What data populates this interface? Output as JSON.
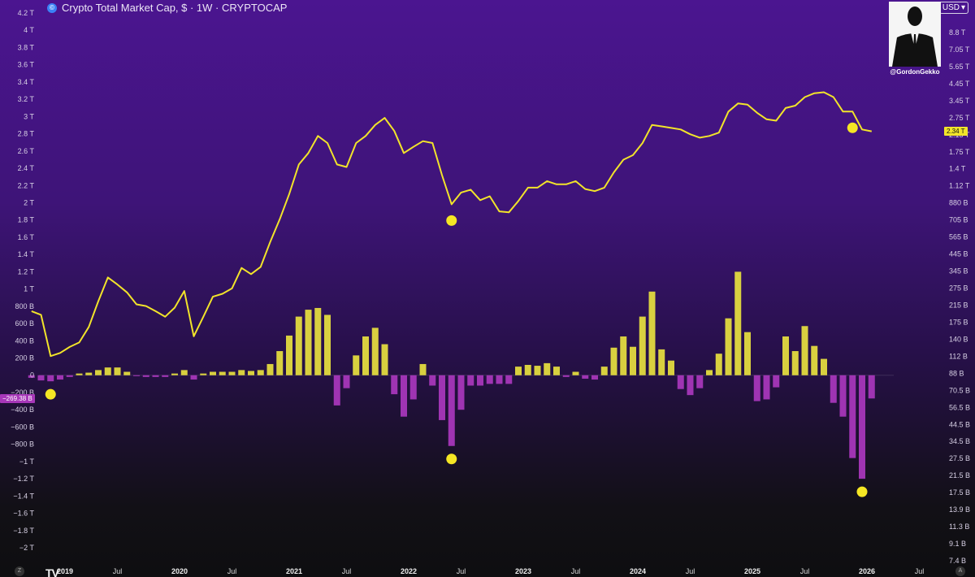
{
  "header": {
    "title": "Crypto Total Market Cap, $ · 1W · CRYPTOCAP",
    "icon": "crypto-cap-icon"
  },
  "currency_button": {
    "label": "USD",
    "icon": "chevron-down-icon"
  },
  "watermark": {
    "handle": "@GordonGekko",
    "icon": "suited-man-silhouette-icon"
  },
  "price_tag": {
    "label": "2.34 T",
    "color": "#f2e42a"
  },
  "oscillator_tag": {
    "label": "−269.38 B",
    "color": "#a737b9"
  },
  "controls": {
    "left": "Z",
    "right": "A",
    "logo": "TV"
  },
  "colors": {
    "line": "#f2e42a",
    "positive": "#e3db3f",
    "negative": "#a737b9",
    "marker": "#f5e624"
  },
  "chart_data": [
    {
      "type": "line",
      "title": "Crypto Total Market Cap, $ · 1W · CRYPTOCAP",
      "y_scale": "log",
      "y_unit": "USD",
      "x": [
        "2018-10",
        "2018-11",
        "2018-12",
        "2019-01",
        "2019-02",
        "2019-03",
        "2019-04",
        "2019-05",
        "2019-06",
        "2019-07",
        "2019-08",
        "2019-09",
        "2019-10",
        "2019-11",
        "2019-12",
        "2020-01",
        "2020-02",
        "2020-03",
        "2020-04",
        "2020-05",
        "2020-06",
        "2020-07",
        "2020-08",
        "2020-09",
        "2020-10",
        "2020-11",
        "2020-12",
        "2021-01",
        "2021-02",
        "2021-03",
        "2021-04",
        "2021-05",
        "2021-06",
        "2021-07",
        "2021-08",
        "2021-09",
        "2021-10",
        "2021-11",
        "2021-12",
        "2022-01",
        "2022-02",
        "2022-03",
        "2022-04",
        "2022-05",
        "2022-06",
        "2022-07",
        "2022-08",
        "2022-09",
        "2022-10",
        "2022-11",
        "2022-12",
        "2023-01",
        "2023-02",
        "2023-03",
        "2023-04",
        "2023-05",
        "2023-06",
        "2023-07",
        "2023-08",
        "2023-09",
        "2023-10",
        "2023-11",
        "2023-12",
        "2024-01",
        "2024-02",
        "2024-03",
        "2024-04",
        "2024-05",
        "2024-06",
        "2024-07",
        "2024-08",
        "2024-09",
        "2024-10",
        "2024-11",
        "2024-12",
        "2025-01",
        "2025-02",
        "2025-03",
        "2025-04",
        "2025-05",
        "2025-06",
        "2025-07",
        "2025-08",
        "2025-09",
        "2025-10",
        "2025-11",
        "2025-12",
        "2026-01",
        "2026-02"
      ],
      "y": [
        210000000000.0,
        200000000000.0,
        115000000000.0,
        120000000000.0,
        130000000000.0,
        138000000000.0,
        170000000000.0,
        240000000000.0,
        330000000000.0,
        300000000000.0,
        270000000000.0,
        230000000000.0,
        225000000000.0,
        210000000000.0,
        195000000000.0,
        220000000000.0,
        275000000000.0,
        150000000000.0,
        195000000000.0,
        255000000000.0,
        265000000000.0,
        285000000000.0,
        375000000000.0,
        345000000000.0,
        380000000000.0,
        530000000000.0,
        720000000000.0,
        1010000000000.0,
        1500000000000.0,
        1750000000000.0,
        2200000000000.0,
        2000000000000.0,
        1500000000000.0,
        1450000000000.0,
        2000000000000.0,
        2200000000000.0,
        2550000000000.0,
        2800000000000.0,
        2350000000000.0,
        1750000000000.0,
        1900000000000.0,
        2050000000000.0,
        2000000000000.0,
        1300000000000.0,
        880000000000.0,
        1030000000000.0,
        1070000000000.0,
        930000000000.0,
        980000000000.0,
        800000000000.0,
        790000000000.0,
        920000000000.0,
        1100000000000.0,
        1100000000000.0,
        1200000000000.0,
        1150000000000.0,
        1150000000000.0,
        1200000000000.0,
        1080000000000.0,
        1050000000000.0,
        1100000000000.0,
        1350000000000.0,
        1600000000000.0,
        1700000000000.0,
        2000000000000.0,
        2550000000000.0,
        2500000000000.0,
        2450000000000.0,
        2400000000000.0,
        2250000000000.0,
        2150000000000.0,
        2200000000000.0,
        2300000000000.0,
        3050000000000.0,
        3400000000000.0,
        3350000000000.0,
        3000000000000.0,
        2750000000000.0,
        2700000000000.0,
        3200000000000.0,
        3300000000000.0,
        3700000000000.0,
        3900000000000.0,
        3950000000000.0,
        3700000000000.0,
        3050000000000.0,
        3050000000000.0,
        2400000000000.0,
        2340000000000.0
      ],
      "right_axis_ticks": [
        "8.8 T",
        "7.05 T",
        "5.65 T",
        "4.45 T",
        "3.45 T",
        "2.75 T",
        "2.15 T",
        "1.75 T",
        "1.4 T",
        "1.12 T",
        "880 B",
        "705 B",
        "565 B",
        "445 B",
        "345 B",
        "275 B",
        "215 B",
        "175 B",
        "140 B",
        "112 B",
        "88 B",
        "70.5 B",
        "56.5 B",
        "44.5 B",
        "34.5 B",
        "27.5 B",
        "21.5 B",
        "17.5 B",
        "13.9 B",
        "11.3 B",
        "9.1 B",
        "7.4 B"
      ],
      "last_value_label": "2.34 T"
    },
    {
      "type": "bar",
      "y_unit": "USD",
      "ylim": [
        -2000000000000.0,
        4200000000000.0
      ],
      "left_axis_ticks": [
        "4.2 T",
        "4 T",
        "3.8 T",
        "3.6 T",
        "3.4 T",
        "3.2 T",
        "3 T",
        "2.8 T",
        "2.6 T",
        "2.4 T",
        "2.2 T",
        "2 T",
        "1.8 T",
        "1.6 T",
        "1.4 T",
        "1.2 T",
        "1 T",
        "800 B",
        "600 B",
        "400 B",
        "200 B",
        "0",
        "−200 B",
        "−400 B",
        "−600 B",
        "−800 B",
        "−1 T",
        "−1.2 T",
        "−1.4 T",
        "−1.6 T",
        "−1.8 T",
        "−2 T"
      ],
      "x": [
        "2018-10",
        "2018-11",
        "2018-12",
        "2019-01",
        "2019-02",
        "2019-03",
        "2019-04",
        "2019-05",
        "2019-06",
        "2019-07",
        "2019-08",
        "2019-09",
        "2019-10",
        "2019-11",
        "2019-12",
        "2020-01",
        "2020-02",
        "2020-03",
        "2020-04",
        "2020-05",
        "2020-06",
        "2020-07",
        "2020-08",
        "2020-09",
        "2020-10",
        "2020-11",
        "2020-12",
        "2021-01",
        "2021-02",
        "2021-03",
        "2021-04",
        "2021-05",
        "2021-06",
        "2021-07",
        "2021-08",
        "2021-09",
        "2021-10",
        "2021-11",
        "2021-12",
        "2022-01",
        "2022-02",
        "2022-03",
        "2022-04",
        "2022-05",
        "2022-06",
        "2022-07",
        "2022-08",
        "2022-09",
        "2022-10",
        "2022-11",
        "2022-12",
        "2023-01",
        "2023-02",
        "2023-03",
        "2023-04",
        "2023-05",
        "2023-06",
        "2023-07",
        "2023-08",
        "2023-09",
        "2023-10",
        "2023-11",
        "2023-12",
        "2024-01",
        "2024-02",
        "2024-03",
        "2024-04",
        "2024-05",
        "2024-06",
        "2024-07",
        "2024-08",
        "2024-09",
        "2024-10",
        "2024-11",
        "2024-12",
        "2025-01",
        "2025-02",
        "2025-03",
        "2025-04",
        "2025-05",
        "2025-06",
        "2025-07",
        "2025-08",
        "2025-09",
        "2025-10",
        "2025-11",
        "2025-12",
        "2026-01",
        "2026-02"
      ],
      "values": [
        -30000000000.0,
        -60000000000.0,
        -70000000000.0,
        -50000000000.0,
        -20000000000.0,
        20000000000.0,
        30000000000.0,
        60000000000.0,
        90000000000.0,
        90000000000.0,
        40000000000.0,
        -10000000000.0,
        -20000000000.0,
        -20000000000.0,
        -20000000000.0,
        20000000000.0,
        60000000000.0,
        -50000000000.0,
        20000000000.0,
        40000000000.0,
        40000000000.0,
        40000000000.0,
        60000000000.0,
        50000000000.0,
        60000000000.0,
        130000000000.0,
        280000000000.0,
        460000000000.0,
        680000000000.0,
        760000000000.0,
        780000000000.0,
        700000000000.0,
        -350000000000.0,
        -150000000000.0,
        230000000000.0,
        450000000000.0,
        550000000000.0,
        360000000000.0,
        -220000000000.0,
        -480000000000.0,
        -280000000000.0,
        130000000000.0,
        -120000000000.0,
        -520000000000.0,
        -820000000000.0,
        -400000000000.0,
        -120000000000.0,
        -120000000000.0,
        -100000000000.0,
        -100000000000.0,
        -100000000000.0,
        100000000000.0,
        120000000000.0,
        110000000000.0,
        140000000000.0,
        100000000000.0,
        -20000000000.0,
        40000000000.0,
        -40000000000.0,
        -50000000000.0,
        100000000000.0,
        320000000000.0,
        450000000000.0,
        330000000000.0,
        680000000000.0,
        970000000000.0,
        300000000000.0,
        170000000000.0,
        -160000000000.0,
        -230000000000.0,
        -150000000000.0,
        60000000000.0,
        250000000000.0,
        660000000000.0,
        1200000000000.0,
        500000000000.0,
        -300000000000.0,
        -280000000000.0,
        -140000000000.0,
        450000000000.0,
        280000000000.0,
        570000000000.0,
        340000000000.0,
        190000000000.0,
        -320000000000.0,
        -480000000000.0,
        -960000000000.0,
        -1200000000000.0,
        -269000000000.0
      ],
      "last_value_label": "−269.38 B"
    }
  ],
  "x_axis_labels": [
    {
      "text": "2019",
      "year": true
    },
    {
      "text": "Jul",
      "year": false
    },
    {
      "text": "2020",
      "year": true
    },
    {
      "text": "Jul",
      "year": false
    },
    {
      "text": "2021",
      "year": true
    },
    {
      "text": "Jul",
      "year": false
    },
    {
      "text": "2022",
      "year": true
    },
    {
      "text": "Jul",
      "year": false
    },
    {
      "text": "2023",
      "year": true
    },
    {
      "text": "Jul",
      "year": false
    },
    {
      "text": "2024",
      "year": true
    },
    {
      "text": "Jul",
      "year": false
    },
    {
      "text": "2025",
      "year": true
    },
    {
      "text": "Jul",
      "year": false
    },
    {
      "text": "2026",
      "year": true
    },
    {
      "text": "Jul",
      "year": false
    }
  ],
  "markers": [
    {
      "series": "price",
      "date": "2022-06"
    },
    {
      "series": "price",
      "date": "2025-12"
    },
    {
      "series": "oscillator",
      "date": "2018-12"
    },
    {
      "series": "oscillator",
      "date": "2022-06"
    },
    {
      "series": "oscillator",
      "date": "2026-01"
    }
  ]
}
